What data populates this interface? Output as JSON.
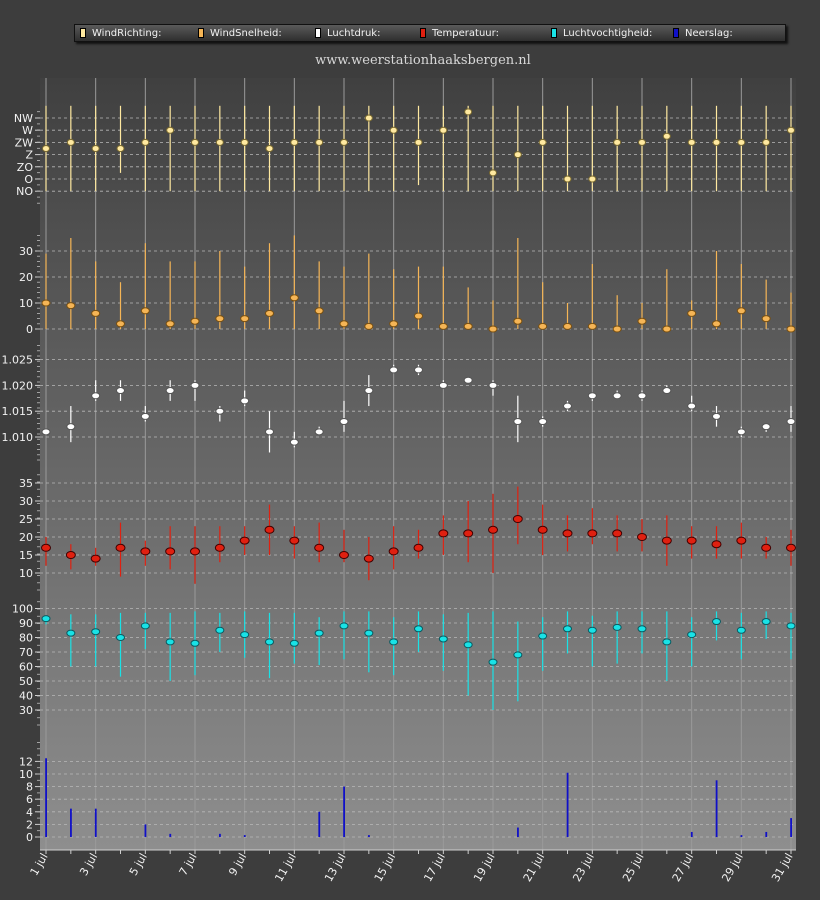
{
  "site_url": "www.weerstationhaaksbergen.nl",
  "legend": [
    {
      "label": "WindRichting:",
      "color": "#ffe9a0"
    },
    {
      "label": "WindSnelheid:",
      "color": "#f5b556"
    },
    {
      "label": "Luchtdruk:",
      "color": "#ffffff"
    },
    {
      "label": "Temperatuur:",
      "color": "#e02010"
    },
    {
      "label": "Luchtvochtigheid:",
      "color": "#19e2e6"
    },
    {
      "label": "Neerslag:",
      "color": "#1010c8"
    }
  ],
  "chart_data": {
    "type": "scatter",
    "x_tick_labels": [
      "1 jul",
      "3 jul",
      "5 jul",
      "7 jul",
      "9 jul",
      "11 jul",
      "13 jul",
      "15 jul",
      "17 jul",
      "19 jul",
      "21 jul",
      "23 jul",
      "25 jul",
      "27 jul",
      "29 jul",
      "31 jul"
    ],
    "days": [
      1,
      2,
      3,
      4,
      5,
      6,
      7,
      8,
      9,
      10,
      11,
      12,
      13,
      14,
      15,
      16,
      17,
      18,
      19,
      20,
      21,
      22,
      23,
      24,
      25,
      26,
      27,
      28,
      29,
      30,
      31
    ],
    "panels": [
      {
        "id": "windrichting",
        "series": "WindRichting:",
        "color": "#ffe9a0",
        "categories": [
          "NW",
          "W",
          "ZW",
          "Z",
          "ZO",
          "O",
          "NO"
        ],
        "values": [
          2.5,
          2,
          2.5,
          2.5,
          2,
          1,
          2,
          2,
          2,
          2.5,
          2,
          2,
          2,
          0,
          1,
          2,
          1,
          -0.5,
          4.5,
          3,
          2,
          5,
          5,
          2,
          2,
          1.5,
          2,
          2,
          2,
          2,
          1
        ],
        "low": [
          -1,
          -1,
          -1,
          -1,
          -1,
          -1,
          -1,
          -1,
          -1,
          -1,
          -1,
          -1,
          -1,
          -1,
          -1,
          -1,
          -1,
          -1,
          -1,
          -1,
          -1,
          -1,
          -1,
          -1,
          -1,
          -1,
          -1,
          -1,
          -1,
          -1,
          -1
        ],
        "high": [
          6,
          6,
          6,
          4.5,
          6,
          6,
          6,
          6,
          6,
          6,
          6,
          6,
          6,
          6,
          6,
          5.5,
          6,
          6,
          6,
          6,
          6,
          6,
          6,
          6,
          6,
          6,
          6,
          6,
          6,
          6,
          6
        ]
      },
      {
        "id": "windsnelheid",
        "series": "WindSnelheid:",
        "color": "#f5b556",
        "ticks": [
          0,
          10,
          20,
          30
        ],
        "values": [
          10,
          9,
          6,
          2,
          7,
          2,
          3,
          4,
          4,
          6,
          12,
          7,
          2,
          1,
          2,
          5,
          1,
          1,
          0,
          3,
          1,
          1,
          1,
          0,
          3,
          0,
          6,
          2,
          7,
          4,
          0
        ],
        "low": [
          0,
          0,
          0,
          0,
          0,
          0,
          0,
          0,
          0,
          0,
          0,
          0,
          0,
          0,
          0,
          0,
          0,
          0,
          0,
          0,
          0,
          0,
          0,
          0,
          0,
          0,
          0,
          0,
          0,
          0,
          0
        ],
        "high": [
          29,
          35,
          26,
          18,
          33,
          26,
          26,
          30,
          24,
          33,
          36,
          26,
          24,
          29,
          23,
          24,
          24,
          16,
          11,
          35,
          18,
          10,
          25,
          13,
          10,
          23,
          11,
          30,
          25,
          19,
          14
        ]
      },
      {
        "id": "luchtdruk",
        "series": "Luchtdruk:",
        "color": "#ffffff",
        "ticks": [
          1.01,
          1.015,
          1.02,
          1.025
        ],
        "tick_labels": [
          "1.010",
          "1.015",
          "1.020",
          "1.025"
        ],
        "values": [
          1.011,
          1.012,
          1.018,
          1.019,
          1.014,
          1.019,
          1.02,
          1.015,
          1.017,
          1.011,
          1.009,
          1.011,
          1.013,
          1.019,
          1.023,
          1.023,
          1.02,
          1.021,
          1.02,
          1.013,
          1.013,
          1.016,
          1.018,
          1.018,
          1.018,
          1.019,
          1.016,
          1.014,
          1.011,
          1.012,
          1.013
        ],
        "low": [
          1.011,
          1.009,
          1.017,
          1.017,
          1.013,
          1.017,
          1.017,
          1.013,
          1.016,
          1.007,
          1.008,
          1.011,
          1.011,
          1.016,
          1.023,
          1.022,
          1.02,
          1.021,
          1.018,
          1.009,
          1.012,
          1.015,
          1.017,
          1.018,
          1.017,
          1.019,
          1.015,
          1.012,
          1.01,
          1.011,
          1.011
        ],
        "high": [
          1.011,
          1.016,
          1.021,
          1.021,
          1.016,
          1.021,
          1.021,
          1.016,
          1.019,
          1.015,
          1.011,
          1.012,
          1.017,
          1.022,
          1.024,
          1.024,
          1.021,
          1.021,
          1.021,
          1.018,
          1.014,
          1.017,
          1.018,
          1.019,
          1.019,
          1.02,
          1.018,
          1.016,
          1.012,
          1.012,
          1.016
        ]
      },
      {
        "id": "temperatuur",
        "series": "Temperatuur:",
        "color": "#e02010",
        "ticks": [
          10,
          15,
          20,
          25,
          30,
          35
        ],
        "values": [
          17,
          15,
          14,
          17,
          16,
          16,
          16,
          17,
          19,
          22,
          19,
          17,
          15,
          14,
          16,
          17,
          21,
          21,
          22,
          25,
          22,
          21,
          21,
          21,
          20,
          19,
          19,
          18,
          19,
          17,
          17
        ],
        "low": [
          12,
          11,
          12,
          9,
          12,
          11,
          7,
          13,
          15,
          15,
          14,
          13,
          13,
          8,
          11,
          14,
          15,
          13,
          10,
          18,
          15,
          16,
          18,
          16,
          16,
          12,
          14,
          14,
          14,
          14,
          12
        ],
        "high": [
          20,
          18,
          17,
          24,
          19,
          23,
          23,
          23,
          23,
          29,
          23,
          24,
          22,
          20,
          23,
          22,
          26,
          30,
          32,
          34,
          29,
          26,
          28,
          26,
          25,
          26,
          23,
          23,
          24,
          20,
          22
        ]
      },
      {
        "id": "luchtvochtigheid",
        "series": "Luchtvochtigheid:",
        "color": "#19e2e6",
        "ticks": [
          30,
          40,
          50,
          60,
          70,
          80,
          90,
          100
        ],
        "values": [
          93,
          83,
          84,
          80,
          88,
          77,
          76,
          85,
          82,
          77,
          76,
          83,
          88,
          83,
          77,
          86,
          79,
          75,
          63,
          68,
          81,
          86,
          85,
          87,
          86,
          77,
          82,
          91,
          85,
          91,
          88
        ],
        "low": [
          89,
          60,
          60,
          53,
          72,
          50,
          54,
          70,
          66,
          52,
          62,
          61,
          65,
          56,
          54,
          70,
          57,
          40,
          30,
          36,
          57,
          69,
          60,
          62,
          69,
          50,
          60,
          78,
          65,
          79,
          65
        ],
        "high": [
          95,
          96,
          96,
          97,
          97,
          97,
          98,
          97,
          98,
          97,
          97,
          94,
          98,
          98,
          94,
          98,
          96,
          97,
          98,
          91,
          94,
          98,
          95,
          98,
          98,
          98,
          94,
          98,
          97,
          98,
          97
        ]
      },
      {
        "id": "neerslag",
        "series": "Neerslag:",
        "color": "#1010c8",
        "ticks": [
          0,
          2,
          4,
          6,
          8,
          10,
          12
        ],
        "values": [
          12.5,
          4.5,
          4.5,
          0,
          2,
          0.5,
          0,
          0.5,
          0.3,
          0,
          0,
          4,
          8,
          0.3,
          0,
          0,
          0,
          0,
          0,
          1.5,
          0,
          10.2,
          0,
          0,
          0,
          0,
          0.8,
          9,
          0.3,
          0.8,
          3
        ]
      }
    ]
  }
}
